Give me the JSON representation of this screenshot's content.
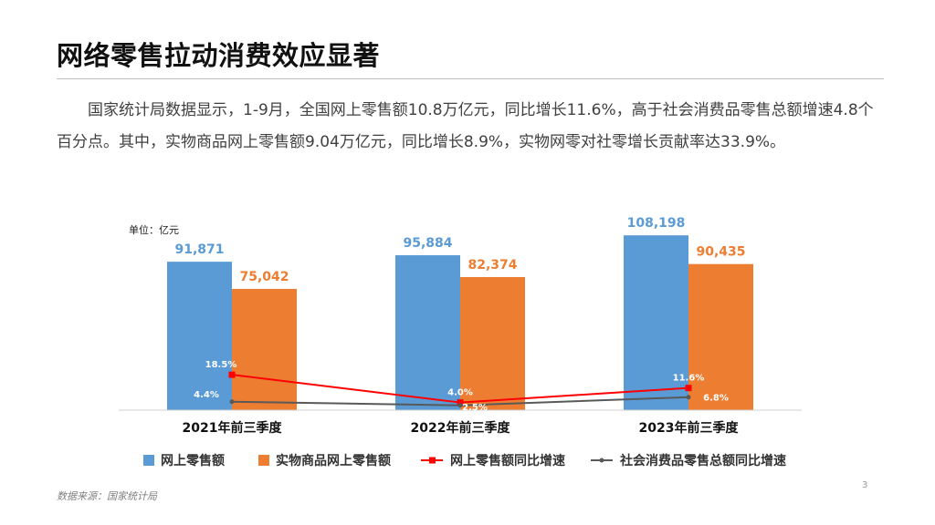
{
  "title": "网络零售拉动消费效应显著",
  "paragraph": "国家统计局数据显示，1-9月，全国网上零售额10.8万亿元，同比增长11.6%，高于社会消费品零售总额增速4.8个百分点。其中，实物商品网上零售额9.04万亿元，同比增长8.9%，实物网零对社零增长贡献率达33.9%。",
  "unit_label": "单位：亿元",
  "source": "数据来源：国家统计局",
  "page_number": "3",
  "colors": {
    "online_retail": "#5b9bd5",
    "physical_online": "#ed7d31",
    "online_growth": "#ff0000",
    "total_growth": "#595959"
  },
  "chart_data": {
    "type": "bar",
    "categories": [
      "2021年前三季度",
      "2022年前三季度",
      "2023年前三季度"
    ],
    "series": [
      {
        "name": "网上零售额",
        "kind": "bar",
        "values": [
          91871,
          95884,
          108198
        ],
        "labels": [
          "91,871",
          "95,884",
          "108,198"
        ]
      },
      {
        "name": "实物商品网上零售额",
        "kind": "bar",
        "values": [
          75042,
          82374,
          90435
        ],
        "labels": [
          "75,042",
          "82,374",
          "90,435"
        ]
      },
      {
        "name": "网上零售额同比增速",
        "kind": "line",
        "values": [
          18.5,
          4.0,
          11.6
        ],
        "labels": [
          "18.5%",
          "4.0%",
          "11.6%"
        ]
      },
      {
        "name": "社会消费品零售总额同比增速",
        "kind": "line",
        "values": [
          4.4,
          2.5,
          6.8
        ],
        "labels": [
          "4.4%",
          "2.5%",
          "6.8%"
        ]
      }
    ],
    "bar_ylim": [
      0,
      110000
    ],
    "line_ylim": [
      0,
      90
    ],
    "legend_position": "bottom",
    "grid": false
  }
}
